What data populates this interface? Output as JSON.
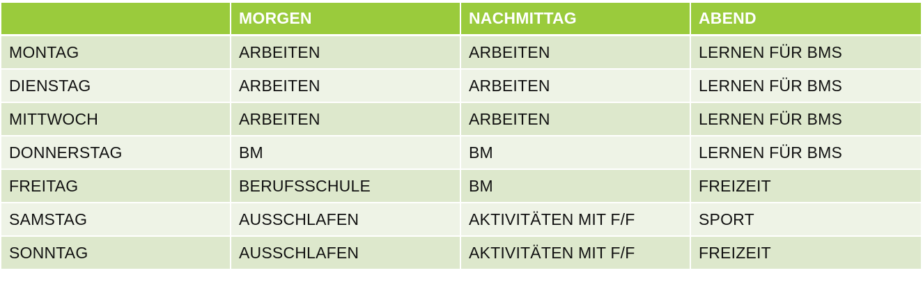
{
  "table": {
    "headers": [
      "",
      "MORGEN",
      "NACHMITTAG",
      "ABEND"
    ],
    "rows": [
      [
        "MONTAG",
        "ARBEITEN",
        "ARBEITEN",
        "LERNEN FÜR BMS"
      ],
      [
        "DIENSTAG",
        "ARBEITEN",
        "ARBEITEN",
        "LERNEN FÜR BMS"
      ],
      [
        "MITTWOCH",
        "ARBEITEN",
        "ARBEITEN",
        "LERNEN FÜR BMS"
      ],
      [
        "DONNERSTAG",
        "BM",
        "BM",
        "LERNEN FÜR BMS"
      ],
      [
        "FREITAG",
        "BERUFSSCHULE",
        "BM",
        "FREIZEIT"
      ],
      [
        "SAMSTAG",
        "AUSSCHLAFEN",
        "AKTIVITÄTEN MIT F/F",
        "SPORT"
      ],
      [
        "SONNTAG",
        "AUSSCHLAFEN",
        "AKTIVITÄTEN MIT F/F",
        "FREIZEIT"
      ]
    ]
  },
  "colors": {
    "header_background": "#9acb3c",
    "header_text": "#ffffff",
    "row_band_dark": "#dde8cc",
    "row_band_light": "#eef3e6",
    "body_text": "#111111"
  }
}
